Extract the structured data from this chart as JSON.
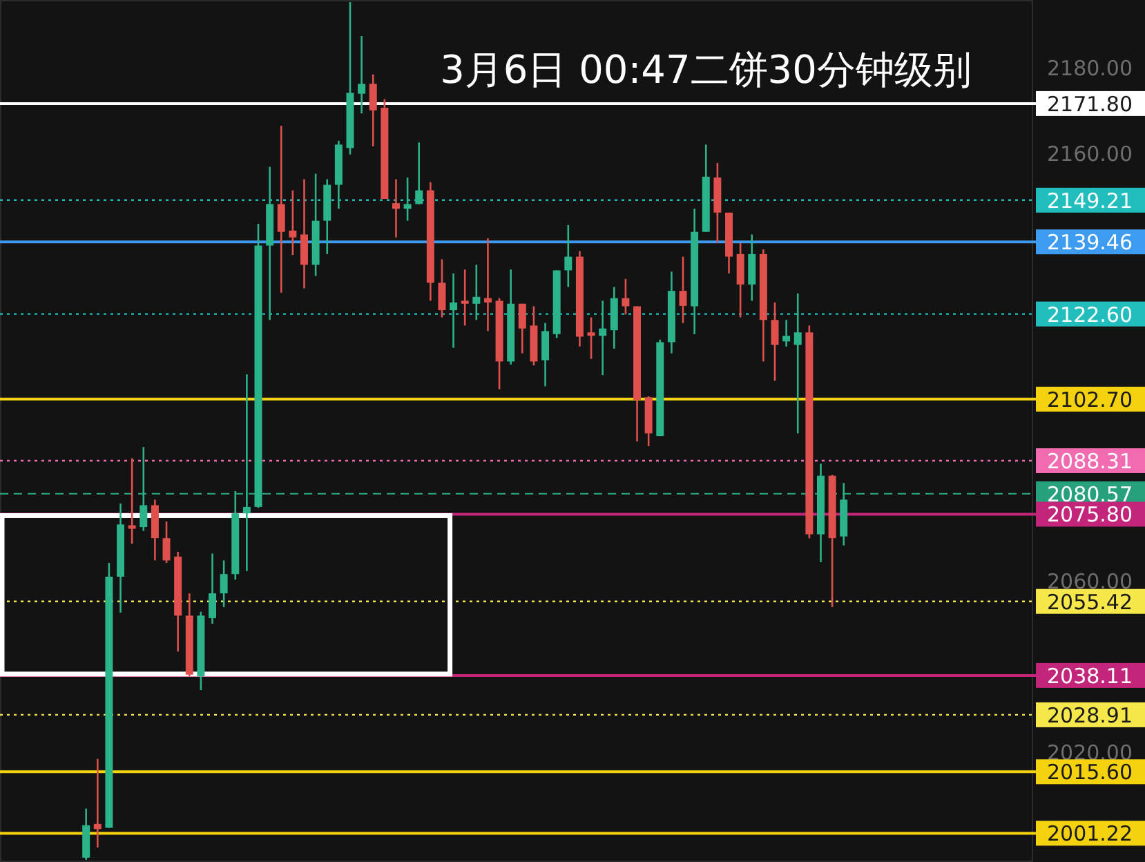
{
  "chart_data": {
    "type": "candlestick",
    "title": "3月6日 00:47二饼30分钟级别",
    "categories": [
      null,
      null,
      null,
      null,
      null,
      null,
      null,
      null,
      null,
      null,
      null,
      null,
      null,
      null,
      null,
      null,
      null,
      null,
      null,
      null,
      null,
      null,
      null,
      null,
      null,
      null,
      null,
      null,
      null,
      null,
      null,
      null,
      null,
      null,
      null,
      null,
      null,
      null,
      null,
      null,
      null,
      null,
      null,
      null,
      null,
      null,
      null,
      null,
      null,
      null,
      null,
      null,
      null,
      null,
      null,
      null,
      null,
      null,
      null,
      null,
      null,
      null,
      null,
      null,
      null,
      null,
      null,
      null,
      null,
      null,
      null,
      null,
      null,
      null,
      null,
      null,
      null,
      null,
      null,
      null,
      null,
      null,
      null,
      null,
      null,
      null,
      null,
      null,
      null,
      null
    ],
    "ohlc": [
      null,
      null,
      null,
      null,
      null,
      null,
      null,
      [
        1995.5,
        2007.0,
        1995.0,
        2003.1
      ],
      [
        2003.4,
        2018.6,
        1997.9,
        2002.2
      ],
      [
        2002.5,
        2064.4,
        2002.5,
        2061.2
      ],
      [
        2061.2,
        2078.3,
        2052.8,
        2073.4
      ],
      [
        2073.2,
        2088.9,
        2068.9,
        2072.4
      ],
      [
        2072.8,
        2091.5,
        2071.9,
        2077.9
      ],
      [
        2077.9,
        2079.2,
        2065.0,
        2070.2
      ],
      [
        2070.2,
        2074.1,
        2064.4,
        2065.0
      ],
      [
        2065.9,
        2067.0,
        2043.7,
        2052.1
      ],
      [
        2052.1,
        2057.3,
        2037.9,
        2038.3
      ],
      [
        2037.9,
        2053.0,
        2034.7,
        2052.1
      ],
      [
        2051.5,
        2066.6,
        2050.2,
        2057.3
      ],
      [
        2057.3,
        2065.0,
        2054.1,
        2061.8
      ],
      [
        2061.8,
        2081.2,
        2060.5,
        2076.0
      ],
      [
        2076.0,
        2108.5,
        2062.5,
        2077.5
      ],
      [
        2077.5,
        2143.7,
        2077.3,
        2138.6
      ],
      [
        2138.6,
        2157.0,
        2121.2,
        2148.3
      ],
      [
        2148.3,
        2166.6,
        2127.6,
        2141.8
      ],
      [
        2142.1,
        2151.5,
        2136.4,
        2140.5
      ],
      [
        2141.2,
        2154.1,
        2128.6,
        2134.1
      ],
      [
        2134.1,
        2155.4,
        2131.5,
        2144.4
      ],
      [
        2144.4,
        2154.1,
        2136.6,
        2152.8
      ],
      [
        2152.8,
        2163.1,
        2147.2,
        2162.2
      ],
      [
        2161.4,
        2195.5,
        2159.9,
        2174.3
      ],
      [
        2174.1,
        2187.6,
        2169.5,
        2176.4
      ],
      [
        2176.4,
        2178.6,
        2161.8,
        2170.2
      ],
      [
        2170.8,
        2172.8,
        2149.5,
        2149.5
      ],
      [
        2148.5,
        2154.1,
        2140.5,
        2147.2
      ],
      [
        2147.2,
        2154.5,
        2144.4,
        2148.3
      ],
      [
        2148.3,
        2162.7,
        2148.3,
        2151.5
      ],
      [
        2151.5,
        2153.4,
        2125.7,
        2129.9
      ],
      [
        2129.9,
        2135.4,
        2121.8,
        2123.5
      ],
      [
        2123.5,
        2132.1,
        2114.7,
        2125.3
      ],
      [
        2125.7,
        2133.0,
        2119.9,
        2125.0
      ],
      [
        2125.0,
        2134.1,
        2121.2,
        2126.6
      ],
      [
        2126.3,
        2140.3,
        2118.6,
        2125.3
      ],
      [
        2125.7,
        2126.3,
        2105.0,
        2111.5
      ],
      [
        2111.5,
        2133.0,
        2110.8,
        2125.0
      ],
      [
        2125.0,
        2125.0,
        2113.4,
        2119.2
      ],
      [
        2119.9,
        2124.4,
        2110.6,
        2111.5
      ],
      [
        2111.8,
        2120.5,
        2105.7,
        2118.6
      ],
      [
        2117.9,
        2132.8,
        2117.0,
        2132.8
      ],
      [
        2132.8,
        2143.4,
        2128.9,
        2136.0
      ],
      [
        2136.0,
        2137.3,
        2115.0,
        2117.3
      ],
      [
        2118.3,
        2121.8,
        2112.1,
        2117.5
      ],
      [
        2117.5,
        2125.7,
        2108.3,
        2119.2
      ],
      [
        2118.8,
        2128.9,
        2114.5,
        2126.3
      ],
      [
        2126.3,
        2130.8,
        2122.5,
        2124.4
      ],
      [
        2124.4,
        2124.4,
        2092.8,
        2102.5
      ],
      [
        2103.1,
        2103.4,
        2091.7,
        2094.7
      ],
      [
        2094.1,
        2116.6,
        2094.1,
        2116.0
      ],
      [
        2116.0,
        2132.5,
        2113.4,
        2128.0
      ],
      [
        2128.0,
        2136.0,
        2120.5,
        2124.5
      ],
      [
        2124.4,
        2147.2,
        2117.9,
        2141.8
      ],
      [
        2141.8,
        2162.2,
        2141.8,
        2154.7
      ],
      [
        2154.5,
        2157.9,
        2139.2,
        2146.3
      ],
      [
        2146.3,
        2146.3,
        2132.1,
        2136.0
      ],
      [
        2136.6,
        2139.2,
        2121.8,
        2129.5
      ],
      [
        2129.5,
        2141.2,
        2125.7,
        2136.6
      ],
      [
        2136.6,
        2137.7,
        2111.5,
        2121.2
      ],
      [
        2121.2,
        2125.3,
        2107.0,
        2115.4
      ],
      [
        2116.2,
        2121.2,
        2115.0,
        2117.5
      ],
      [
        2115.4,
        2127.4,
        2094.7,
        2118.3
      ],
      [
        2118.3,
        2119.9,
        2070.2,
        2071.1
      ],
      [
        2071.1,
        2087.6,
        2064.6,
        2084.8
      ],
      [
        2084.8,
        2085.0,
        2054.1,
        2070.2
      ],
      [
        2070.6,
        2083.1,
        2068.5,
        2079.2
      ],
      null,
      null,
      null,
      null,
      null,
      null,
      null,
      null,
      null,
      null,
      null,
      null,
      null,
      null,
      null,
      null
    ],
    "ylim": [
      1994.5,
      2196
    ],
    "yticks": [
      {
        "value": 2180,
        "label": "2180.00"
      },
      {
        "value": 2160,
        "label": "2160.00"
      },
      {
        "value": 2060,
        "label": "2060.00"
      },
      {
        "value": 2020,
        "label": "2020.00"
      }
    ],
    "tick_labels": "y",
    "ref_lines": [
      {
        "axis": "y",
        "value": 2171.8,
        "label": "2171.80",
        "color": "#ffffff",
        "line_style": "solid"
      },
      {
        "axis": "y",
        "value": 2149.21,
        "label": "2149.21",
        "color": "#22bdbd",
        "line_style": "dotted"
      },
      {
        "axis": "y",
        "value": 2139.46,
        "label": "2139.46",
        "color": "#3d9bf0",
        "line_style": "solid"
      },
      {
        "axis": "y",
        "value": 2122.6,
        "label": "2122.60",
        "color": "#22bdbd",
        "line_style": "dotted"
      },
      {
        "axis": "y",
        "value": 2102.7,
        "label": "2102.70",
        "color": "#f5d20f",
        "line_style": "solid"
      },
      {
        "axis": "y",
        "value": 2088.31,
        "label": "2088.31",
        "color": "#f06bb0",
        "line_style": "dotted"
      },
      {
        "axis": "y",
        "value": 2080.57,
        "label": "2080.57",
        "color": "#26a17b",
        "line_style": "dashed"
      },
      {
        "axis": "y",
        "value": 2075.8,
        "label": "2075.80",
        "color": "#c2257a",
        "line_style": "solid"
      },
      {
        "axis": "y",
        "value": 2055.42,
        "label": "2055.42",
        "color": "#f6e84a",
        "line_style": "dotted"
      },
      {
        "axis": "y",
        "value": 2038.11,
        "label": "2038.11",
        "color": "#c2257a",
        "line_style": "solid"
      },
      {
        "axis": "y",
        "value": 2028.91,
        "label": "2028.91",
        "color": "#f6e84a",
        "line_style": "dotted"
      },
      {
        "axis": "y",
        "value": 2015.6,
        "label": "2015.60",
        "color": "#f5d20f",
        "line_style": "solid"
      },
      {
        "axis": "y",
        "value": 2001.22,
        "label": "2001.22",
        "color": "#f5d20f",
        "line_style": "solid"
      }
    ]
  }
}
